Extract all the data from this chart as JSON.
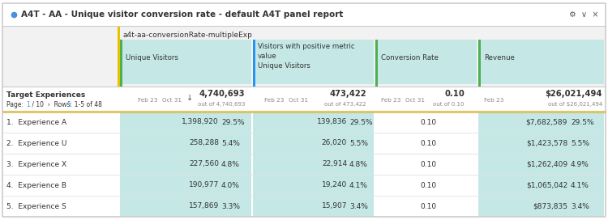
{
  "title": "A4T - AA - Unique visitor conversion rate - default A4T panel report",
  "title_dot_color": "#4a90d9",
  "bg_color": "#ffffff",
  "metric_label": "a4t-aa-conversionRate-multipleExp",
  "col_headers_0": "Unique Visitors",
  "col_headers_1a": "Visitors with positive metric",
  "col_headers_1b": "value",
  "col_headers_1c": "Unique Visitors",
  "col_headers_2": "Conversion Rate",
  "col_headers_3": "Revenue",
  "sr_label": "Target Experiences",
  "sr_col1_total": "4,740,693",
  "sr_col1_sub": "out of 4,740,693",
  "sr_col2_total": "473,422",
  "sr_col2_sub": "out of 473,422",
  "sr_col3_total": "0.10",
  "sr_col3_sub": "out of 0.10",
  "sr_col4_total": "$26,021,494",
  "sr_col4_sub": "out of $26,021,494",
  "rows": [
    {
      "rank": "1.",
      "name": "Experience A",
      "v1": "1,398,920",
      "p1": "29.5%",
      "v2": "139,836",
      "p2": "29.5%",
      "v3": "0.10",
      "v4": "$7,682,589",
      "p4": "29.5%"
    },
    {
      "rank": "2.",
      "name": "Experience U",
      "v1": "258,288",
      "p1": "5.4%",
      "v2": "26,020",
      "p2": "5.5%",
      "v3": "0.10",
      "v4": "$1,423,578",
      "p4": "5.5%"
    },
    {
      "rank": "3.",
      "name": "Experience X",
      "v1": "227,560",
      "p1": "4.8%",
      "v2": "22,914",
      "p2": "4.8%",
      "v3": "0.10",
      "v4": "$1,262,409",
      "p4": "4.9%"
    },
    {
      "rank": "4.",
      "name": "Experience B",
      "v1": "190,977",
      "p1": "4.0%",
      "v2": "19,240",
      "p2": "4.1%",
      "v3": "0.10",
      "v4": "$1,065,042",
      "p4": "4.1%"
    },
    {
      "rank": "5.",
      "name": "Experience S",
      "v1": "157,869",
      "p1": "3.3%",
      "v2": "15,907",
      "p2": "3.4%",
      "v3": "0.10",
      "v4": "$873,835",
      "p4": "3.4%"
    }
  ],
  "text_color": "#333333",
  "small_color": "#888888",
  "blue_color": "#4a90d9",
  "teal_cell": "#c5e8e6",
  "yellow_sep": "#e8c200",
  "green_sep": "#4caf50",
  "blue_sep": "#2196f3",
  "gray_header": "#f2f2f2",
  "border_color": "#cccccc",
  "row_line_color": "#e0e0e0",
  "gold_line": "#d4a800"
}
